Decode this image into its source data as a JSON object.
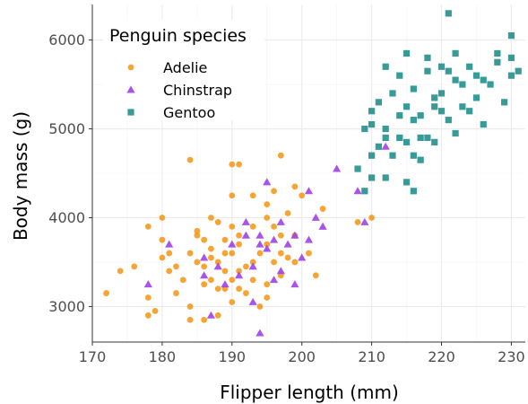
{
  "chart_data": {
    "type": "scatter",
    "xlabel": "Flipper length (mm)",
    "ylabel": "Body mass (g)",
    "xlim": [
      170,
      232
    ],
    "ylim": [
      2600,
      6400
    ],
    "x_ticks": [
      "170",
      "180",
      "190",
      "200",
      "210",
      "220",
      "230"
    ],
    "y_ticks": [
      "3000",
      "4000",
      "5000",
      "6000"
    ],
    "grid": true,
    "legend": {
      "title": "Penguin species",
      "placement": "top-left"
    },
    "series": [
      {
        "name": "Adelie",
        "marker": "circle",
        "color": "#F59A1E",
        "points": [
          [
            172,
            3150
          ],
          [
            174,
            3400
          ],
          [
            176,
            3450
          ],
          [
            178,
            2900
          ],
          [
            178,
            3100
          ],
          [
            178,
            3900
          ],
          [
            179,
            2950
          ],
          [
            180,
            3550
          ],
          [
            180,
            3750
          ],
          [
            180,
            4000
          ],
          [
            181,
            3600
          ],
          [
            181,
            3400
          ],
          [
            182,
            3150
          ],
          [
            182,
            3450
          ],
          [
            183,
            3300
          ],
          [
            184,
            3600
          ],
          [
            184,
            3000
          ],
          [
            184,
            2850
          ],
          [
            184,
            4650
          ],
          [
            185,
            3800
          ],
          [
            185,
            3500
          ],
          [
            186,
            3250
          ],
          [
            186,
            3450
          ],
          [
            186,
            3750
          ],
          [
            186,
            2850
          ],
          [
            187,
            3300
          ],
          [
            187,
            4000
          ],
          [
            187,
            3550
          ],
          [
            188,
            3200
          ],
          [
            188,
            3500
          ],
          [
            188,
            3950
          ],
          [
            188,
            2900
          ],
          [
            189,
            3600
          ],
          [
            189,
            3200
          ],
          [
            189,
            3750
          ],
          [
            190,
            3300
          ],
          [
            190,
            3900
          ],
          [
            190,
            4250
          ],
          [
            190,
            4600
          ],
          [
            190,
            3600
          ],
          [
            190,
            3050
          ],
          [
            191,
            3700
          ],
          [
            191,
            3400
          ],
          [
            191,
            4600
          ],
          [
            191,
            3800
          ],
          [
            192,
            3450
          ],
          [
            192,
            3150
          ],
          [
            193,
            3900
          ],
          [
            193,
            3500
          ],
          [
            193,
            4250
          ],
          [
            194,
            3000
          ],
          [
            194,
            3600
          ],
          [
            195,
            3250
          ],
          [
            195,
            3700
          ],
          [
            195,
            4150
          ],
          [
            196,
            3500
          ],
          [
            196,
            3900
          ],
          [
            196,
            4300
          ],
          [
            197,
            3350
          ],
          [
            197,
            3800
          ],
          [
            197,
            4700
          ],
          [
            198,
            3550
          ],
          [
            198,
            4050
          ],
          [
            199,
            3500
          ],
          [
            199,
            3800
          ],
          [
            200,
            4250
          ],
          [
            201,
            3600
          ],
          [
            202,
            3350
          ],
          [
            203,
            4100
          ],
          [
            208,
            3950
          ],
          [
            210,
            4000
          ],
          [
            195,
            4000
          ],
          [
            185,
            3850
          ],
          [
            187,
            3650
          ],
          [
            189,
            3400
          ],
          [
            191,
            3200
          ],
          [
            193,
            3300
          ],
          [
            195,
            3100
          ],
          [
            197,
            3600
          ],
          [
            199,
            4350
          ]
        ]
      },
      {
        "name": "Chinstrap",
        "marker": "triangle",
        "color": "#A140E6",
        "points": [
          [
            178,
            3250
          ],
          [
            181,
            3700
          ],
          [
            186,
            3550
          ],
          [
            187,
            2900
          ],
          [
            188,
            3450
          ],
          [
            189,
            3250
          ],
          [
            190,
            3700
          ],
          [
            191,
            3350
          ],
          [
            192,
            3800
          ],
          [
            193,
            3050
          ],
          [
            193,
            3450
          ],
          [
            194,
            3800
          ],
          [
            195,
            4400
          ],
          [
            195,
            3650
          ],
          [
            196,
            3300
          ],
          [
            197,
            3950
          ],
          [
            197,
            3400
          ],
          [
            198,
            3700
          ],
          [
            199,
            3250
          ],
          [
            200,
            3550
          ],
          [
            201,
            4300
          ],
          [
            201,
            3750
          ],
          [
            203,
            3900
          ],
          [
            205,
            4550
          ],
          [
            212,
            4800
          ],
          [
            194,
            2700
          ],
          [
            199,
            3800
          ],
          [
            209,
            3950
          ],
          [
            196,
            3750
          ],
          [
            192,
            3950
          ],
          [
            186,
            3350
          ],
          [
            194,
            3700
          ],
          [
            202,
            4000
          ],
          [
            208,
            4300
          ]
        ]
      },
      {
        "name": "Gentoo",
        "marker": "square",
        "color": "#21908D",
        "points": [
          [
            208,
            4550
          ],
          [
            209,
            5000
          ],
          [
            209,
            4300
          ],
          [
            210,
            4450
          ],
          [
            210,
            5200
          ],
          [
            210,
            4700
          ],
          [
            211,
            4800
          ],
          [
            211,
            5300
          ],
          [
            212,
            4450
          ],
          [
            212,
            5700
          ],
          [
            212,
            5000
          ],
          [
            213,
            4700
          ],
          [
            213,
            5400
          ],
          [
            214,
            4900
          ],
          [
            214,
            5600
          ],
          [
            215,
            4850
          ],
          [
            215,
            5250
          ],
          [
            215,
            5850
          ],
          [
            215,
            4400
          ],
          [
            216,
            4700
          ],
          [
            216,
            5100
          ],
          [
            216,
            5450
          ],
          [
            217,
            4650
          ],
          [
            217,
            5150
          ],
          [
            218,
            4900
          ],
          [
            218,
            5650
          ],
          [
            218,
            5800
          ],
          [
            219,
            5250
          ],
          [
            219,
            4850
          ],
          [
            220,
            5400
          ],
          [
            220,
            5700
          ],
          [
            220,
            5200
          ],
          [
            221,
            5100
          ],
          [
            221,
            5650
          ],
          [
            222,
            5550
          ],
          [
            222,
            5850
          ],
          [
            223,
            5250
          ],
          [
            223,
            5500
          ],
          [
            224,
            5200
          ],
          [
            224,
            5700
          ],
          [
            225,
            5350
          ],
          [
            225,
            5600
          ],
          [
            226,
            5050
          ],
          [
            226,
            5550
          ],
          [
            227,
            5500
          ],
          [
            228,
            5750
          ],
          [
            228,
            5850
          ],
          [
            229,
            5300
          ],
          [
            230,
            5800
          ],
          [
            230,
            5600
          ],
          [
            230,
            6050
          ],
          [
            231,
            5650
          ],
          [
            221,
            6300
          ],
          [
            210,
            5050
          ],
          [
            214,
            5150
          ],
          [
            216,
            4300
          ],
          [
            217,
            4900
          ],
          [
            219,
            5350
          ],
          [
            222,
            4950
          ],
          [
            212,
            4900
          ]
        ]
      }
    ]
  }
}
